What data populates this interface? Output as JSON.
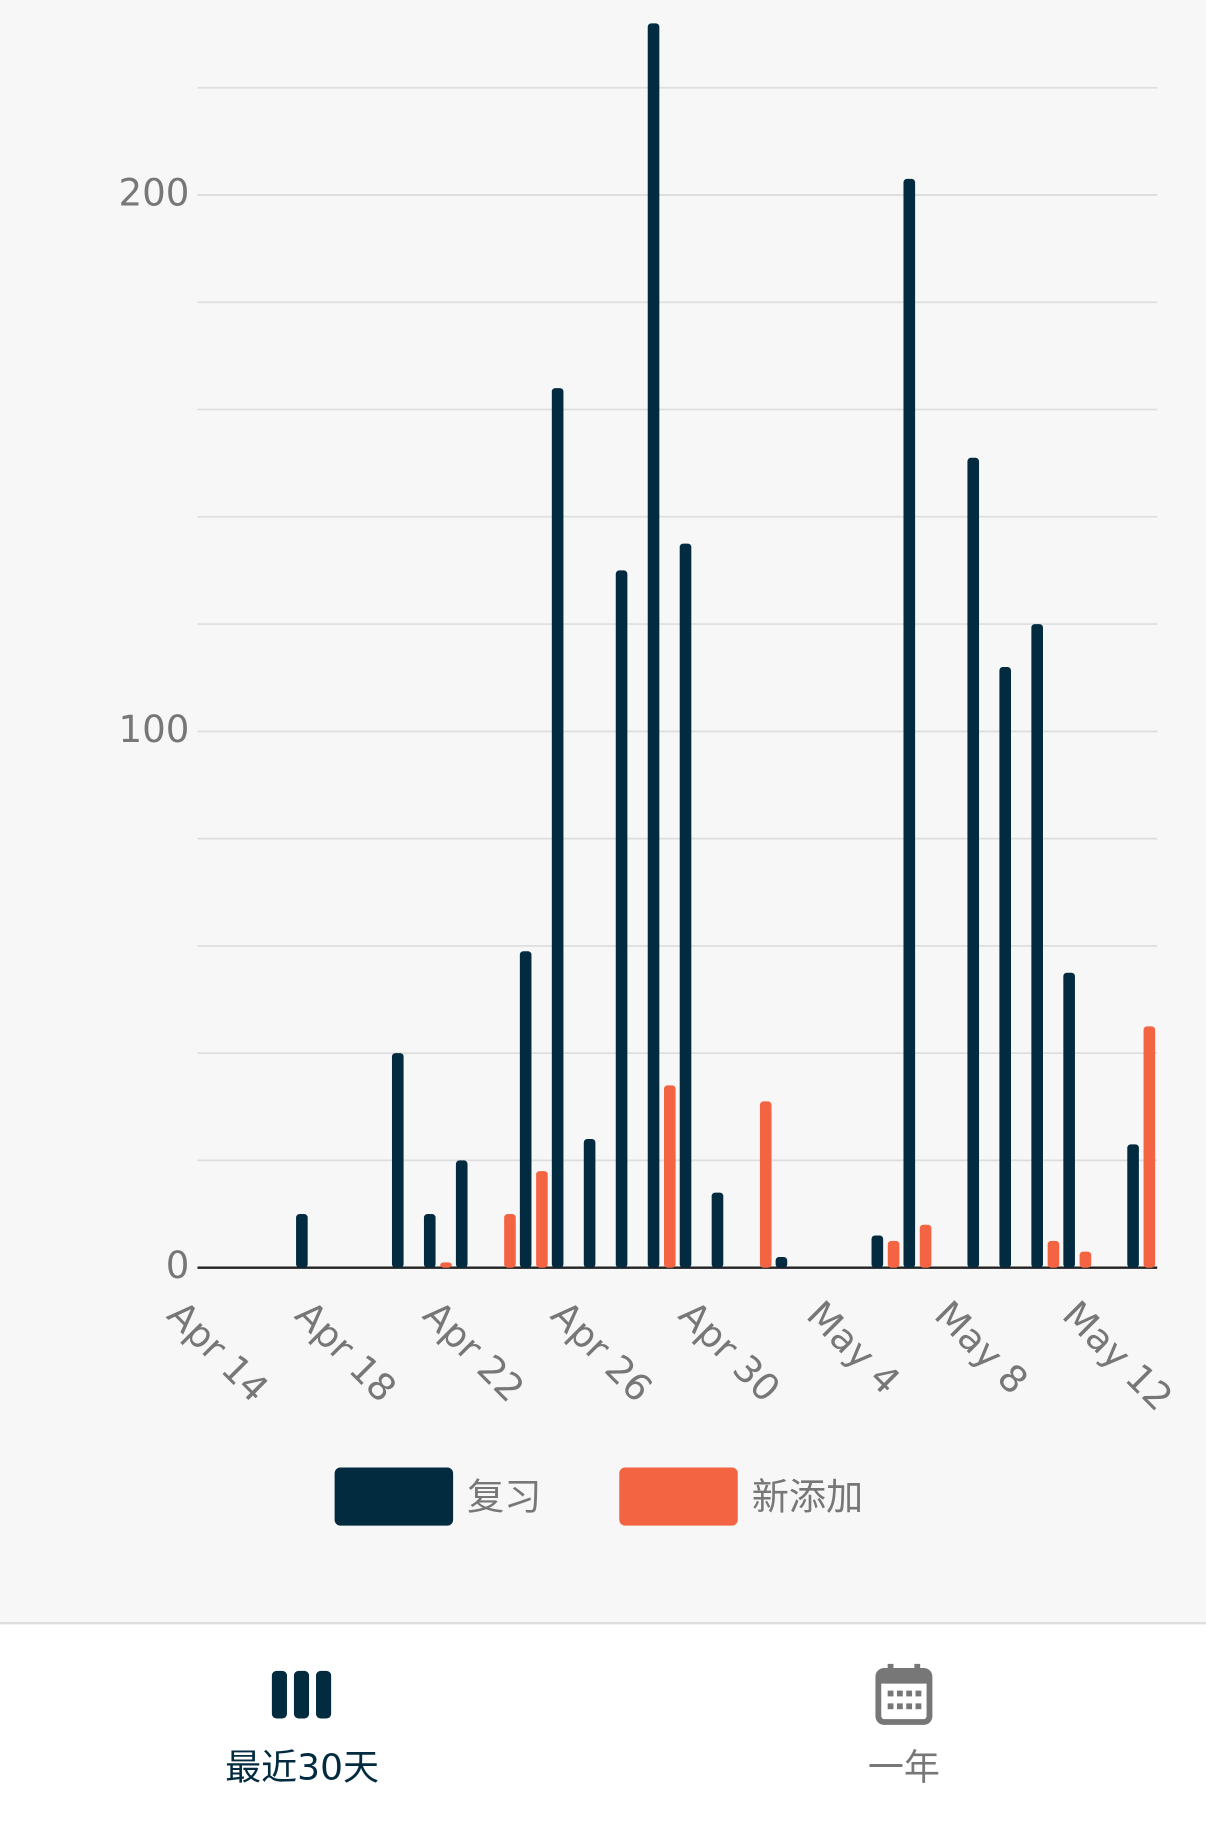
{
  "chart_data": {
    "type": "bar",
    "categories": [
      "Apr 14",
      null,
      null,
      null,
      "Apr 18",
      null,
      null,
      null,
      "Apr 22",
      null,
      null,
      null,
      "Apr 26",
      null,
      null,
      null,
      "Apr 30",
      null,
      null,
      null,
      "May 4",
      null,
      null,
      null,
      "May 8",
      null,
      null,
      null,
      "May 12",
      null,
      null
    ],
    "series": [
      {
        "name": "复习",
        "color": "#022b40",
        "values": [
          0,
          0,
          0,
          0,
          10,
          0,
          0,
          40,
          10,
          20,
          0,
          59,
          164,
          24,
          130,
          232,
          135,
          14,
          0,
          2,
          0,
          0,
          6,
          203,
          0,
          151,
          112,
          120,
          55,
          0,
          23
        ]
      },
      {
        "name": "新添加",
        "color": "#f36542",
        "values": [
          0,
          0,
          0,
          0,
          0,
          0,
          0,
          0,
          1,
          0,
          10,
          18,
          0,
          0,
          0,
          34,
          0,
          0,
          31,
          0,
          0,
          0,
          5,
          8,
          0,
          0,
          0,
          5,
          3,
          0,
          45
        ]
      }
    ],
    "ylim": [
      0,
      232
    ],
    "yticks": [
      0,
      100,
      200
    ],
    "grid_lines": [
      20,
      40,
      60,
      80,
      100,
      120,
      140,
      160,
      180,
      200,
      220
    ],
    "grid": true,
    "legend": "bottom"
  },
  "nav": [
    {
      "label": "最近30天",
      "active": true
    },
    {
      "label": "一年",
      "active": false
    }
  ]
}
